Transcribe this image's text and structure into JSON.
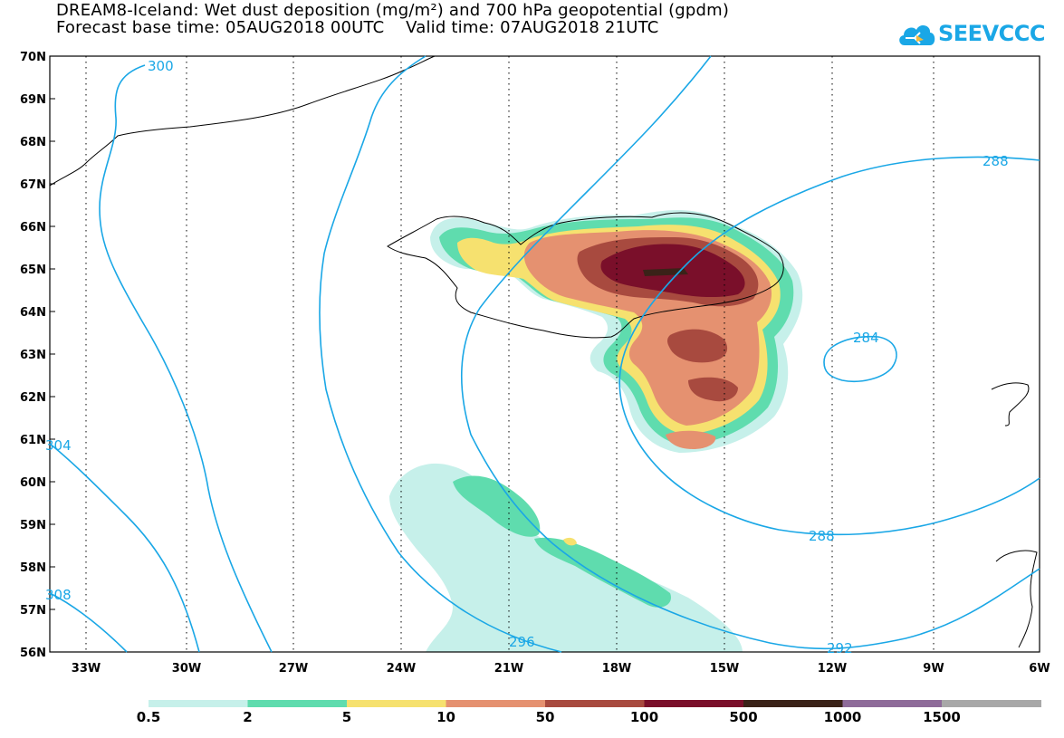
{
  "title_line1": "DREAM8-Iceland: Wet dust deposition (mg/m²) and 700 hPa geopotential (gpdm)",
  "title_line2": "Forecast base time: 05AUG2018 00UTC    Valid time: 07AUG2018 21UTC",
  "logo_text": "SEEVCCC",
  "lat_labels": [
    "70N",
    "69N",
    "68N",
    "67N",
    "66N",
    "65N",
    "64N",
    "63N",
    "62N",
    "61N",
    "60N",
    "59N",
    "58N",
    "57N",
    "56N"
  ],
  "lon_labels": [
    "33W",
    "30W",
    "27W",
    "24W",
    "21W",
    "18W",
    "15W",
    "12W",
    "9W",
    "6W"
  ],
  "contour_labels": [
    "300",
    "288",
    "284",
    "288",
    "292",
    "296",
    "304",
    "308"
  ],
  "colorbar": {
    "labels": [
      "0.5",
      "2",
      "5",
      "10",
      "50",
      "100",
      "500",
      "1000",
      "1500"
    ],
    "colors": [
      "#c6f0ea",
      "#5fdcae",
      "#f6e16f",
      "#e59170",
      "#a84a3f",
      "#7a0f2a",
      "#3a2218",
      "#8e6b99",
      "#a8a8a8"
    ]
  },
  "contour_color": "#1aa7e6"
}
